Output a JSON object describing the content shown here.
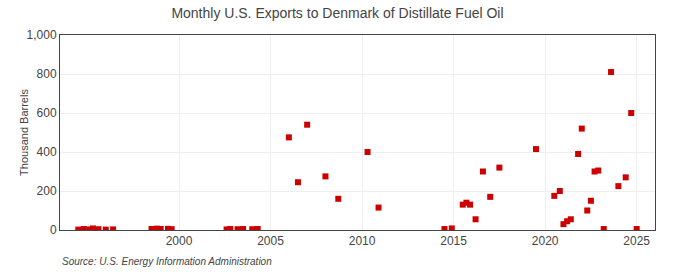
{
  "chart_data": {
    "type": "scatter",
    "title": "Monthly U.S. Exports to Denmark of Distillate Fuel Oil",
    "ylabel": "Thousand Barrels",
    "annotations": [
      "Source: U.S. Energy Information Administration"
    ],
    "color": "#cc0000",
    "marker": "square",
    "grid": true,
    "xlim": [
      1993.5,
      2026
    ],
    "xticks": [
      2000,
      2005,
      2010,
      2015,
      2020,
      2025
    ],
    "ylim": [
      0,
      1000
    ],
    "yticks": [
      0,
      200,
      400,
      600,
      800,
      {
        "value": 1000,
        "label": "1,000"
      }
    ],
    "x": [
      1994.5,
      1994.8,
      1995.1,
      1995.3,
      1995.6,
      1996.0,
      1996.4,
      1998.5,
      1998.8,
      1999.0,
      1999.4,
      1999.6,
      2002.6,
      2002.8,
      2003.2,
      2003.5,
      2004.0,
      2004.3,
      2006.0,
      2006.5,
      2007.0,
      2008.0,
      2008.7,
      2010.3,
      2010.9,
      2014.5,
      2014.9,
      2015.5,
      2015.7,
      2015.9,
      2016.2,
      2016.6,
      2017.0,
      2017.5,
      2019.5,
      2020.5,
      2020.8,
      2021.0,
      2021.2,
      2021.4,
      2021.8,
      2022.0,
      2022.3,
      2022.5,
      2022.7,
      2022.9,
      2023.2,
      2023.6,
      2024.0,
      2024.4,
      2024.7,
      2025.0
    ],
    "values": [
      2,
      5,
      3,
      8,
      4,
      2,
      3,
      5,
      7,
      5,
      6,
      4,
      3,
      5,
      4,
      5,
      4,
      5,
      475,
      245,
      540,
      275,
      160,
      400,
      115,
      5,
      8,
      130,
      140,
      130,
      55,
      300,
      170,
      320,
      415,
      175,
      200,
      30,
      45,
      55,
      390,
      520,
      100,
      150,
      300,
      305,
      5,
      810,
      225,
      270,
      600,
      5
    ]
  }
}
